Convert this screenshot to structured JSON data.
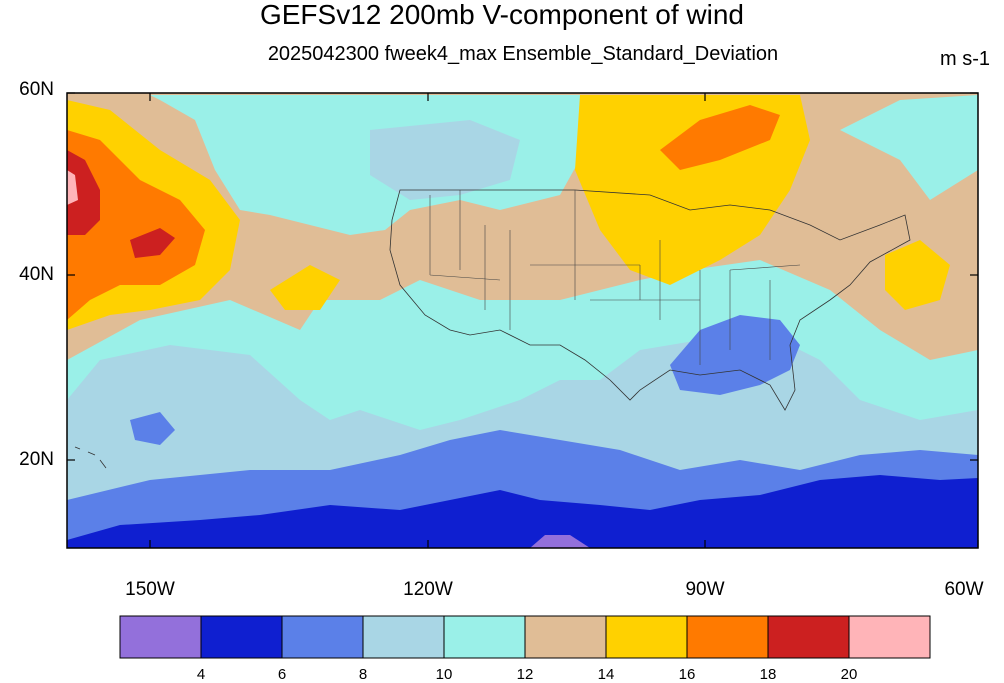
{
  "title": "GEFSv12 200mb V-component of wind",
  "subtitle": "2025042300 fweek4_max Ensemble_Standard_Deviation",
  "units": "m s-1",
  "lat_labels": [
    "60N",
    "40N",
    "20N"
  ],
  "lon_labels": [
    "150W",
    "120W",
    "90W",
    "60W"
  ],
  "colorbar": {
    "colors": [
      "#9370db",
      "#0f1fd0",
      "#5b80e8",
      "#a9d6e5",
      "#9af0e8",
      "#e0bd96",
      "#ffd100",
      "#ff7a00",
      "#cc2020",
      "#ffb4b8"
    ],
    "labels": [
      "4",
      "6",
      "8",
      "10",
      "12",
      "14",
      "16",
      "18",
      "20"
    ]
  }
}
